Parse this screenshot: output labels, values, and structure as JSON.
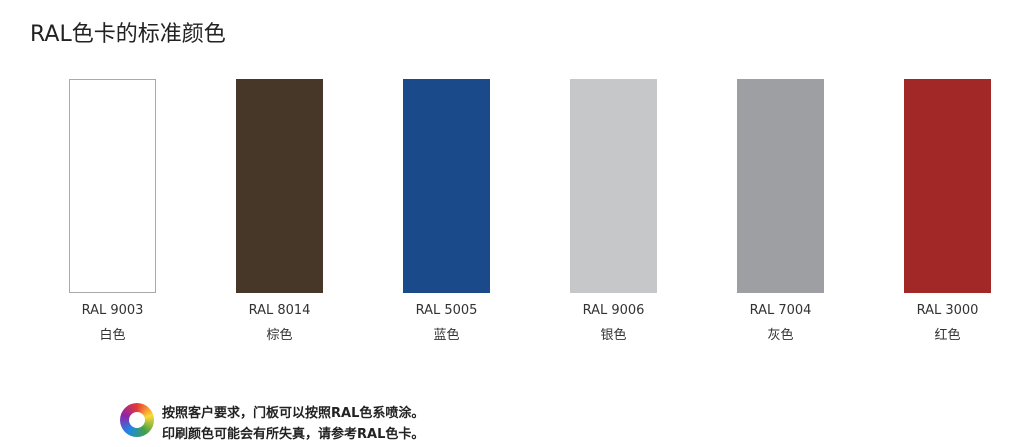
{
  "title": "RAL色卡的标准颜色",
  "swatches": [
    {
      "code": "RAL 9003",
      "name": "白色",
      "color": "#ffffff"
    },
    {
      "code": "RAL 8014",
      "name": "棕色",
      "color": "#473728"
    },
    {
      "code": "RAL 5005",
      "name": "蓝色",
      "color": "#1a4a8a"
    },
    {
      "code": "RAL 9006",
      "name": "银色",
      "color": "#c6c7c9"
    },
    {
      "code": "RAL 7004",
      "name": "灰色",
      "color": "#9e9fa3"
    },
    {
      "code": "RAL 3000",
      "name": "红色",
      "color": "#a22727"
    }
  ],
  "note": [
    "按照客户要求，门板可以按照RAL色系喷涂。",
    "印刷颜色可能会有所失真，请参考RAL色卡。"
  ]
}
